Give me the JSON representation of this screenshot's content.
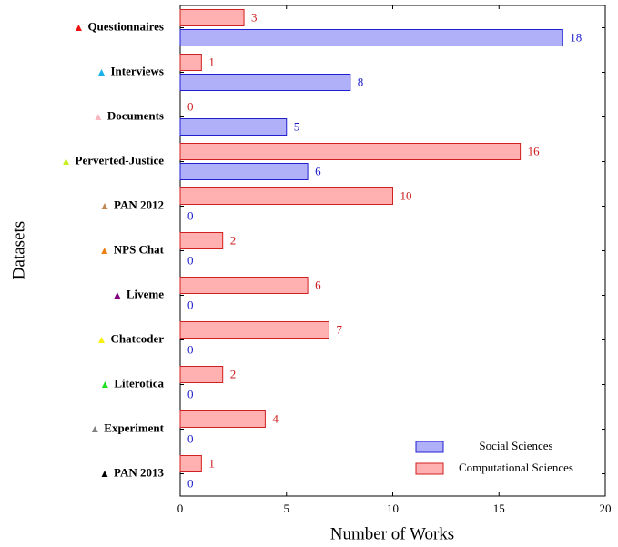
{
  "chart_data": {
    "type": "bar",
    "orientation": "horizontal",
    "x_label": "Number of Works",
    "y_label": "Datasets",
    "categories": [
      "Questionnaires",
      "Interviews",
      "Documents",
      "Perverted-Justice",
      "PAN 2012",
      "NPS Chat",
      "Liveme",
      "Chatcoder",
      "Literotica",
      "Experiment",
      "PAN 2013"
    ],
    "category_colors": [
      "#ee1111",
      "#1ab0e8",
      "#f8b8c0",
      "#c8f020",
      "#c08850",
      "#f08010",
      "#800080",
      "#f8f010",
      "#20e020",
      "#808080",
      "#000000"
    ],
    "series": [
      {
        "name": "Social Sciences",
        "color": "#b0b0f8",
        "edge_color": "#2020d0",
        "label_color": "#1a1acc",
        "values": [
          18,
          8,
          5,
          6,
          0,
          0,
          0,
          0,
          0,
          0,
          0
        ]
      },
      {
        "name": "Computational Sciences",
        "color": "#ffb0b0",
        "edge_color": "#d02020",
        "label_color": "#cc1a1a",
        "values": [
          3,
          1,
          0,
          16,
          10,
          2,
          6,
          7,
          2,
          4,
          1
        ]
      }
    ],
    "xlim": [
      0,
      20
    ],
    "xticks": [
      0,
      5,
      10,
      15,
      20
    ],
    "legend": "lower right"
  }
}
